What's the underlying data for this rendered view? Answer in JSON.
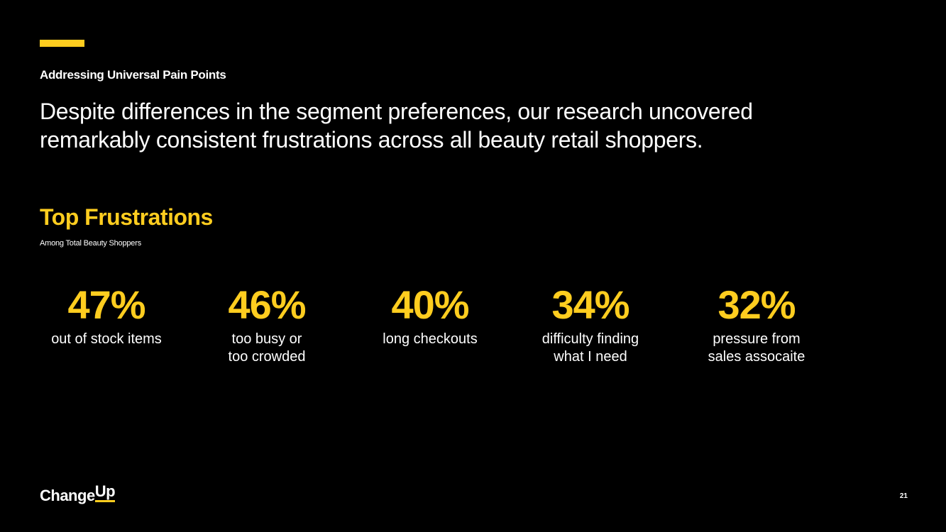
{
  "header": {
    "eyebrow": "Addressing Universal Pain Points",
    "headline": "Despite differences in the segment preferences, our research uncovered remarkably consistent frustrations across all beauty retail shoppers."
  },
  "section": {
    "title": "Top Frustrations",
    "subtitle": "Among Total Beauty Shoppers"
  },
  "stats": [
    {
      "value": "47%",
      "label": [
        "out of stock items"
      ]
    },
    {
      "value": "46%",
      "label": [
        "too busy or",
        "too crowded"
      ]
    },
    {
      "value": "40%",
      "label": [
        "long checkouts"
      ]
    },
    {
      "value": "34%",
      "label": [
        "difficulty finding",
        "what I need"
      ]
    },
    {
      "value": "32%",
      "label": [
        "pressure from",
        "sales assocaite"
      ]
    }
  ],
  "footer": {
    "logo": [
      "Change",
      "Up"
    ],
    "page_number": "21"
  }
}
